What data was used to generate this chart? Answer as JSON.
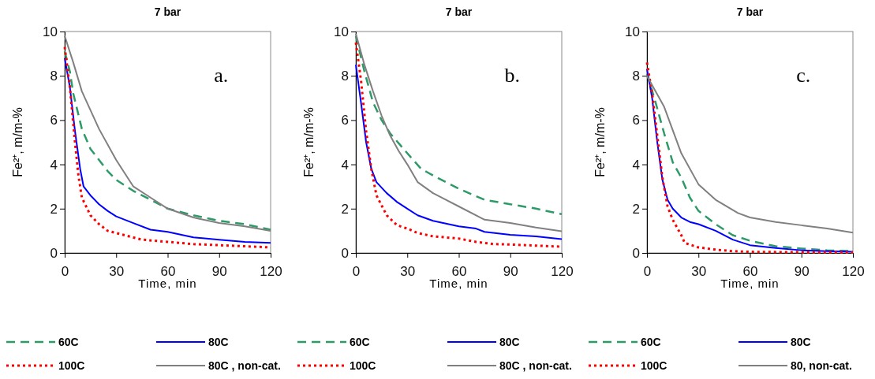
{
  "chart_data": [
    {
      "type": "line",
      "title": "7 bar",
      "xlabel": "Time, min",
      "ylabel": "Fe²⁺, m/m-%",
      "annotations": [
        "a."
      ],
      "xlim": [
        0,
        120
      ],
      "xticks": [
        0,
        30,
        60,
        90,
        120
      ],
      "ylim": [
        0,
        10
      ],
      "yticks": [
        0,
        2,
        4,
        6,
        8,
        10
      ],
      "legend": "bottom",
      "grid": false,
      "marker": "none",
      "series": [
        {
          "name": "60C",
          "color": "#2e9a68",
          "line_style": "dashed",
          "x": [
            0,
            3,
            5,
            10,
            15,
            20,
            25,
            30,
            40,
            50,
            60,
            75,
            90,
            105,
            120
          ],
          "values": [
            9.1,
            8.2,
            7.2,
            5.6,
            4.7,
            4.2,
            3.7,
            3.3,
            2.8,
            2.4,
            2.0,
            1.7,
            1.45,
            1.3,
            1.05
          ]
        },
        {
          "name": "80C",
          "color": "#0000ff",
          "line_style": "solid",
          "x": [
            0,
            3,
            6,
            9,
            11,
            15,
            20,
            25,
            30,
            40,
            50,
            60,
            75,
            90,
            105,
            120
          ],
          "values": [
            8.8,
            7.5,
            5.5,
            3.8,
            3.0,
            2.6,
            2.2,
            1.9,
            1.65,
            1.35,
            1.05,
            0.95,
            0.7,
            0.6,
            0.5,
            0.45
          ]
        },
        {
          "name": "100C",
          "color": "#ff0000",
          "line_style": "dotted",
          "x": [
            0,
            3,
            6,
            8,
            10,
            15,
            20,
            25,
            30,
            45,
            60,
            75,
            90,
            120
          ],
          "values": [
            9.3,
            7.5,
            5.0,
            3.5,
            2.5,
            1.7,
            1.3,
            1.0,
            0.9,
            0.6,
            0.5,
            0.4,
            0.35,
            0.25
          ]
        },
        {
          "name": "80C , non-cat.",
          "color": "#808080",
          "line_style": "solid",
          "x": [
            0,
            5,
            10,
            20,
            30,
            40,
            50,
            60,
            75,
            90,
            105,
            120
          ],
          "values": [
            9.8,
            8.6,
            7.3,
            5.6,
            4.2,
            3.0,
            2.5,
            2.0,
            1.6,
            1.35,
            1.2,
            1.0
          ]
        }
      ]
    },
    {
      "type": "line",
      "title": "7 bar",
      "xlabel": "Time, min",
      "ylabel": "Fe²⁺, m/m-%",
      "annotations": [
        "b."
      ],
      "xlim": [
        0,
        120
      ],
      "xticks": [
        0,
        30,
        60,
        90,
        120
      ],
      "ylim": [
        0,
        10
      ],
      "yticks": [
        0,
        2,
        4,
        6,
        8,
        10
      ],
      "legend": "bottom",
      "grid": false,
      "marker": "none",
      "series": [
        {
          "name": "60C",
          "color": "#2e9a68",
          "line_style": "dashed",
          "x": [
            0,
            5,
            10,
            15,
            20,
            30,
            38,
            45,
            60,
            75,
            90,
            105,
            120
          ],
          "values": [
            9.8,
            8.2,
            6.8,
            6.0,
            5.4,
            4.5,
            3.8,
            3.5,
            2.9,
            2.4,
            2.2,
            2.0,
            1.75
          ]
        },
        {
          "name": "80C",
          "color": "#0000ff",
          "line_style": "solid",
          "x": [
            0,
            3,
            6,
            9,
            12,
            18,
            24,
            30,
            36,
            45,
            60,
            70,
            75,
            90,
            105,
            120
          ],
          "values": [
            8.5,
            6.8,
            5.0,
            3.8,
            3.2,
            2.7,
            2.3,
            2.0,
            1.7,
            1.45,
            1.2,
            1.1,
            0.95,
            0.82,
            0.75,
            0.62
          ]
        },
        {
          "name": "100C",
          "color": "#ff0000",
          "line_style": "dotted",
          "x": [
            0,
            3,
            6,
            9,
            12,
            18,
            24,
            30,
            36,
            45,
            60,
            70,
            80,
            90,
            105,
            120
          ],
          "values": [
            9.5,
            7.8,
            5.5,
            3.8,
            2.6,
            1.7,
            1.25,
            1.1,
            0.9,
            0.75,
            0.65,
            0.5,
            0.4,
            0.38,
            0.33,
            0.28
          ]
        },
        {
          "name": "80C , non-cat.",
          "color": "#808080",
          "line_style": "solid",
          "x": [
            0,
            5,
            10,
            15,
            20,
            25,
            30,
            36,
            45,
            60,
            75,
            90,
            105,
            120
          ],
          "values": [
            9.9,
            8.5,
            7.3,
            6.2,
            5.3,
            4.6,
            4.0,
            3.2,
            2.7,
            2.1,
            1.5,
            1.35,
            1.15,
            0.98
          ]
        }
      ]
    },
    {
      "type": "line",
      "title": "7 bar",
      "xlabel": "Time, min",
      "ylabel": "Fe²⁺, m/m-%",
      "annotations": [
        "c."
      ],
      "xlim": [
        0,
        120
      ],
      "xticks": [
        0,
        30,
        60,
        90,
        120
      ],
      "ylim": [
        0,
        10
      ],
      "yticks": [
        0,
        2,
        4,
        6,
        8,
        10
      ],
      "legend": "bottom",
      "grid": false,
      "marker": "none",
      "series": [
        {
          "name": "60C",
          "color": "#2e9a68",
          "line_style": "dashed",
          "x": [
            0,
            5,
            10,
            15,
            20,
            25,
            30,
            40,
            50,
            60,
            75,
            90,
            105,
            120
          ],
          "values": [
            8.1,
            6.8,
            5.4,
            4.1,
            3.4,
            2.5,
            1.9,
            1.3,
            0.8,
            0.55,
            0.3,
            0.2,
            0.12,
            0.08
          ]
        },
        {
          "name": "80C",
          "color": "#0000ff",
          "line_style": "solid",
          "x": [
            0,
            3,
            6,
            9,
            12,
            15,
            20,
            25,
            30,
            40,
            50,
            60,
            75,
            90,
            105,
            120
          ],
          "values": [
            8.3,
            7.0,
            5.0,
            3.3,
            2.4,
            2.0,
            1.6,
            1.4,
            1.3,
            1.0,
            0.6,
            0.35,
            0.22,
            0.12,
            0.08,
            0.05
          ]
        },
        {
          "name": "100C",
          "color": "#ff0000",
          "line_style": "dotted",
          "x": [
            0,
            3,
            6,
            9,
            12,
            15,
            20,
            22,
            30,
            40,
            50,
            60,
            90,
            120
          ],
          "values": [
            8.6,
            7.2,
            5.3,
            3.4,
            2.1,
            1.5,
            0.8,
            0.45,
            0.25,
            0.15,
            0.08,
            0.05,
            0.03,
            0.02
          ]
        },
        {
          "name": "80, non-cat.",
          "color": "#808080",
          "line_style": "solid",
          "x": [
            0,
            10,
            20,
            30,
            40,
            53,
            60,
            75,
            90,
            105,
            120
          ],
          "values": [
            8.0,
            6.6,
            4.5,
            3.1,
            2.4,
            1.8,
            1.6,
            1.4,
            1.25,
            1.1,
            0.92
          ]
        }
      ]
    }
  ]
}
